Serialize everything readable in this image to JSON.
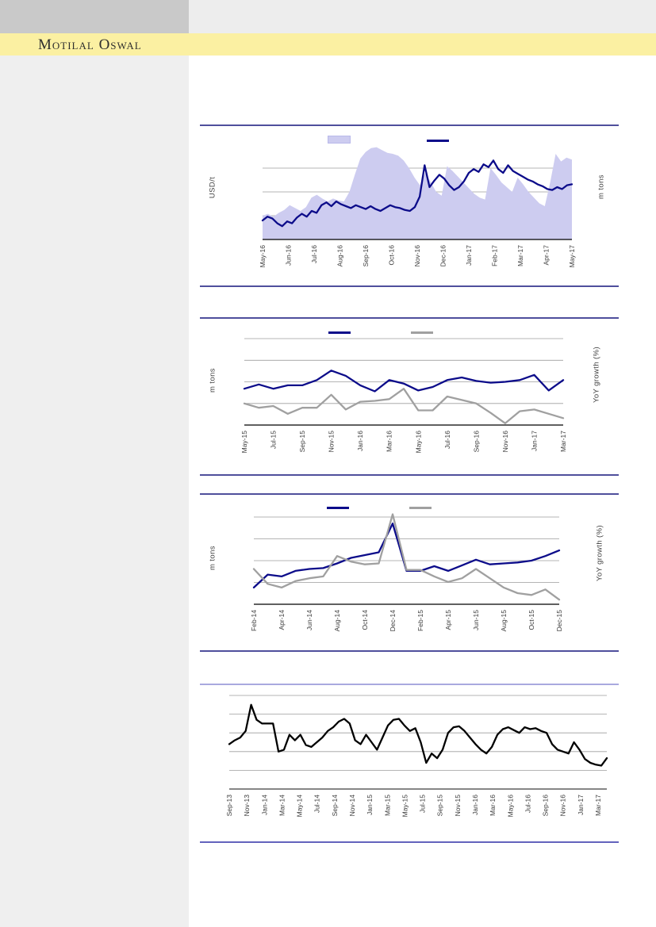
{
  "header": {
    "brand": "Motilal Oswal",
    "band_color": "#fbf0a2",
    "corner_block_color": "#c9c9c9",
    "top_strip_color": "#ededed",
    "sidebar_color": "#efefef",
    "brand_text_color": "#2e2e2e"
  },
  "colors": {
    "navy_series": "#0c0c8a",
    "area_fill": "#cdccf0",
    "gray_series": "#a0a0a0",
    "black_series": "#000000",
    "gridline": "#9d9d9d",
    "axis": "#000000",
    "tick_text": "#3a3a3a",
    "separator_dark": "#4f4f9c",
    "separator_light": "#a9a9df",
    "separator_medium": "#6363bd"
  },
  "charts": [
    {
      "name": "chart-1",
      "title": "",
      "left_axis_label": "USD/t",
      "right_axis_label": "m tons",
      "legend": [
        {
          "style": "area",
          "color": "#cdccf0"
        },
        {
          "style": "line",
          "color": "#0c0c8a"
        }
      ],
      "chart_data": {
        "type": "area",
        "title": "",
        "x_range": [
          "May-16",
          "May-17"
        ],
        "x_tick_labels": [
          "May-16",
          "Jun-16",
          "Jul-16",
          "Aug-16",
          "Sep-16",
          "Oct-16",
          "Nov-16",
          "Dec-16",
          "Jan-17",
          "Feb-17",
          "Mar-17",
          "Apr-17",
          "May-17"
        ],
        "ylabel_left": "USD/t",
        "ylabel_right": "m tons",
        "value_scale": "0-100 index of plot height (no y-axis tick values shown)",
        "ylim": [
          0,
          100
        ],
        "series": [
          {
            "name": "m tons (right axis, area)",
            "type": "area",
            "color": "#cdccf0",
            "values": [
              25,
              27,
              24,
              28,
              31,
              36,
              33,
              30,
              34,
              44,
              47,
              43,
              40,
              43,
              41,
              40,
              50,
              68,
              85,
              92,
              96,
              97,
              94,
              91,
              90,
              88,
              83,
              75,
              65,
              57,
              70,
              60,
              50,
              46,
              77,
              72,
              66,
              60,
              54,
              48,
              44,
              42,
              75,
              68,
              60,
              55,
              50,
              65,
              58,
              50,
              44,
              38,
              35,
              60,
              90,
              82,
              86,
              84
            ]
          },
          {
            "name": "USD/t (left axis, line)",
            "type": "line",
            "color": "#0c0c8a",
            "values": [
              20,
              24,
              22,
              17,
              14,
              19,
              17,
              23,
              27,
              24,
              30,
              28,
              36,
              39,
              35,
              40,
              37,
              35,
              33,
              36,
              34,
              32,
              35,
              32,
              30,
              33,
              36,
              34,
              33,
              31,
              30,
              34,
              45,
              78,
              55,
              62,
              68,
              64,
              57,
              52,
              55,
              61,
              70,
              74,
              71,
              79,
              76,
              83,
              74,
              70,
              78,
              72,
              69,
              66,
              63,
              61,
              58,
              56,
              53,
              52,
              55,
              53,
              57,
              58
            ]
          }
        ]
      }
    },
    {
      "name": "chart-2",
      "title": "",
      "left_axis_label": "m tons",
      "right_axis_label": "YoY growth (%)",
      "legend": [
        {
          "style": "line",
          "color": "#0c0c8a"
        },
        {
          "style": "line",
          "color": "#a0a0a0"
        }
      ],
      "chart_data": {
        "type": "line",
        "title": "",
        "x": [
          "May-15",
          "Jun-15",
          "Jul-15",
          "Aug-15",
          "Sep-15",
          "Oct-15",
          "Nov-15",
          "Dec-15",
          "Jan-16",
          "Feb-16",
          "Mar-16",
          "Apr-16",
          "May-16",
          "Jun-16",
          "Jul-16",
          "Aug-16",
          "Sep-16",
          "Oct-16",
          "Nov-16",
          "Dec-16",
          "Jan-17",
          "Feb-17",
          "Mar-17"
        ],
        "x_tick_labels": [
          "May-15",
          "Jul-15",
          "Sep-15",
          "Nov-15",
          "Jan-16",
          "Mar-16",
          "May-16",
          "Jul-16",
          "Sep-16",
          "Nov-16",
          "Jan-17",
          "Mar-17"
        ],
        "ylabel_left": "m tons",
        "ylabel_right": "YoY growth (%)",
        "value_scale": "0-100 index of plot height (no y-axis tick values shown)",
        "ylim": [
          0,
          100
        ],
        "series": [
          {
            "name": "m tons (left axis)",
            "type": "line",
            "color": "#0c0c8a",
            "values": [
              42,
              47,
              42,
              46,
              46,
              52,
              63,
              57,
              46,
              39,
              52,
              48,
              40,
              44,
              52,
              55,
              51,
              49,
              50,
              52,
              58,
              40,
              52
            ]
          },
          {
            "name": "YoY growth % (right axis)",
            "type": "line",
            "color": "#a0a0a0",
            "values": [
              25,
              20,
              22,
              13,
              20,
              20,
              35,
              18,
              27,
              28,
              30,
              42,
              17,
              17,
              33,
              29,
              25,
              14,
              2,
              16,
              18,
              13,
              8
            ]
          }
        ]
      }
    },
    {
      "name": "chart-3",
      "title": "",
      "left_axis_label": "m tons",
      "right_axis_label": "YoY growth (%)",
      "legend": [
        {
          "style": "line",
          "color": "#0c0c8a"
        },
        {
          "style": "line",
          "color": "#a0a0a0"
        }
      ],
      "chart_data": {
        "type": "line",
        "title": "",
        "x": [
          "Feb-14",
          "Mar-14",
          "Apr-14",
          "May-14",
          "Jun-14",
          "Jul-14",
          "Aug-14",
          "Sep-14",
          "Oct-14",
          "Nov-14",
          "Dec-14",
          "Jan-15",
          "Feb-15",
          "Mar-15",
          "Apr-15",
          "May-15",
          "Jun-15",
          "Jul-15",
          "Aug-15",
          "Sep-15",
          "Oct-15",
          "Nov-15",
          "Dec-15"
        ],
        "x_tick_labels": [
          "Feb-14",
          "Apr-14",
          "Jun-14",
          "Aug-14",
          "Oct-14",
          "Dec-14",
          "Feb-15",
          "Apr-15",
          "Jun-15",
          "Aug-15",
          "Oct-15",
          "Dec-15"
        ],
        "ylabel_left": "m tons",
        "ylabel_right": "YoY growth (%)",
        "value_scale": "0-100 index of plot height (no y-axis tick values shown)",
        "ylim": [
          0,
          100
        ],
        "series": [
          {
            "name": "m tons (left axis)",
            "type": "line",
            "color": "#0c0c8a",
            "values": [
              18,
              32,
              30,
              36,
              38,
              39,
              44,
              50,
              53,
              56,
              87,
              36,
              36,
              41,
              36,
              42,
              48,
              43,
              44,
              45,
              47,
              52,
              58
            ]
          },
          {
            "name": "YoY growth % (right axis)",
            "type": "line",
            "color": "#a0a0a0",
            "values": [
              38,
              22,
              18,
              25,
              28,
              30,
              52,
              46,
              43,
              44,
              97,
              37,
              37,
              30,
              24,
              28,
              38,
              28,
              18,
              12,
              10,
              16,
              5
            ]
          }
        ]
      }
    },
    {
      "name": "chart-4",
      "title": "",
      "left_axis_label": "",
      "right_axis_label": "",
      "legend": [],
      "chart_data": {
        "type": "line",
        "title": "",
        "x_range": [
          "Sep-13",
          "Mar-17"
        ],
        "x_tick_labels": [
          "Sep-13",
          "Nov-13",
          "Jan-14",
          "Mar-14",
          "May-14",
          "Jul-14",
          "Sep-14",
          "Nov-14",
          "Jan-15",
          "Mar-15",
          "May-15",
          "Jul-15",
          "Sep-15",
          "Nov-15",
          "Jan-16",
          "Mar-16",
          "May-16",
          "Jul-16",
          "Sep-16",
          "Nov-16",
          "Jan-17",
          "Mar-17"
        ],
        "value_scale": "0-100 index of plot height (no y-axis tick values shown)",
        "ylim": [
          0,
          100
        ],
        "series": [
          {
            "name": "series (black line)",
            "type": "line",
            "color": "#000000",
            "values": [
              48,
              52,
              55,
              62,
              90,
              74,
              70,
              70,
              70,
              40,
              42,
              58,
              52,
              58,
              47,
              45,
              50,
              55,
              62,
              66,
              72,
              75,
              70,
              52,
              48,
              58,
              50,
              42,
              55,
              68,
              74,
              75,
              68,
              62,
              65,
              50,
              28,
              38,
              33,
              42,
              60,
              66,
              67,
              62,
              55,
              48,
              42,
              38,
              45,
              58,
              64,
              66,
              63,
              60,
              66,
              64,
              65,
              62,
              60,
              48,
              42,
              40,
              38,
              50,
              42,
              32,
              28,
              26,
              25,
              33
            ]
          }
        ]
      }
    }
  ]
}
